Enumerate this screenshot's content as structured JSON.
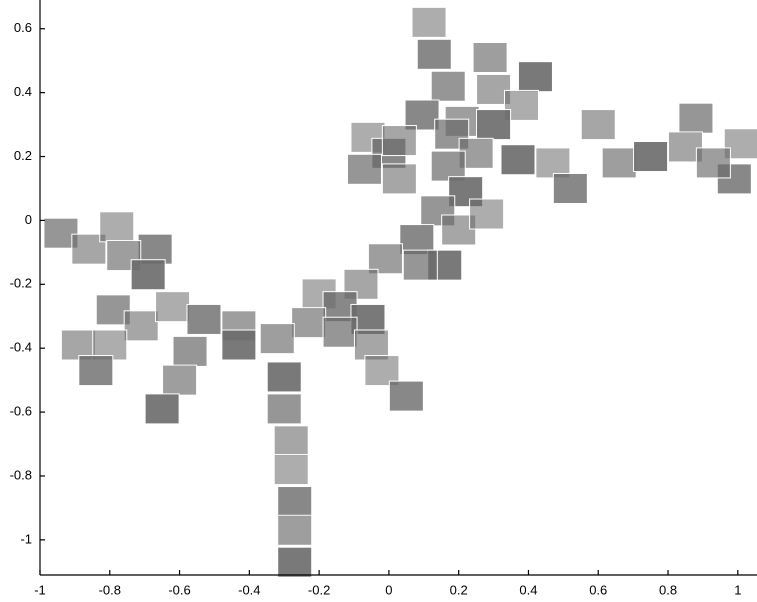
{
  "chart_data": {
    "type": "scatter",
    "x": [
      0.115,
      0.13,
      0.29,
      0.42,
      0.17,
      0.3,
      0.38,
      0.095,
      0.21,
      0.3,
      0.18,
      0.6,
      -0.06,
      0.0,
      0.25,
      0.37,
      0.17,
      0.03,
      0.47,
      0.52,
      0.66,
      0.75,
      0.88,
      0.85,
      1.01,
      0.99,
      0.93,
      0.22,
      0.14,
      0.2,
      0.28,
      0.08,
      -0.01,
      0.16,
      0.09,
      -0.08,
      -0.2,
      -0.14,
      -0.23,
      -0.06,
      -0.14,
      -0.05,
      -0.02,
      0.05,
      -0.32,
      -0.3,
      -0.3,
      -0.28,
      -0.28,
      -0.27,
      -0.27,
      -0.27,
      -0.94,
      -0.86,
      -0.78,
      -0.67,
      -0.76,
      -0.69,
      -0.79,
      -0.71,
      -0.62,
      -0.53,
      -0.43,
      -0.43,
      -0.57,
      -0.89,
      -0.8,
      -0.84,
      -0.6,
      -0.65,
      -0.07,
      0.03
    ],
    "values": [
      0.62,
      0.52,
      0.51,
      0.45,
      0.42,
      0.41,
      0.36,
      0.33,
      0.31,
      0.3,
      0.27,
      0.3,
      0.26,
      0.21,
      0.21,
      0.19,
      0.17,
      0.13,
      0.18,
      0.1,
      0.18,
      0.2,
      0.32,
      0.23,
      0.24,
      0.13,
      0.18,
      0.09,
      0.03,
      -0.03,
      0.02,
      -0.06,
      -0.12,
      -0.14,
      -0.14,
      -0.2,
      -0.23,
      -0.27,
      -0.32,
      -0.31,
      -0.35,
      -0.39,
      -0.47,
      -0.55,
      -0.37,
      -0.49,
      -0.59,
      -0.69,
      -0.78,
      -0.88,
      -0.97,
      -1.07,
      -0.04,
      -0.09,
      -0.02,
      -0.09,
      -0.11,
      -0.17,
      -0.28,
      -0.33,
      -0.27,
      -0.31,
      -0.33,
      -0.39,
      -0.41,
      -0.39,
      -0.39,
      -0.47,
      -0.5,
      -0.59,
      0.16,
      0.25
    ],
    "color": "#6a6a6a",
    "xlim": [
      -1.0,
      1.055
    ],
    "ylim": [
      -1.11,
      0.69
    ],
    "xticks": [
      -1,
      -0.8,
      -0.6,
      -0.4,
      -0.2,
      0,
      0.2,
      0.4,
      0.6,
      0.8,
      1
    ],
    "yticks": [
      -1,
      -0.8,
      -0.6,
      -0.4,
      -0.2,
      0,
      0.2,
      0.4,
      0.6
    ],
    "grid": false
  }
}
